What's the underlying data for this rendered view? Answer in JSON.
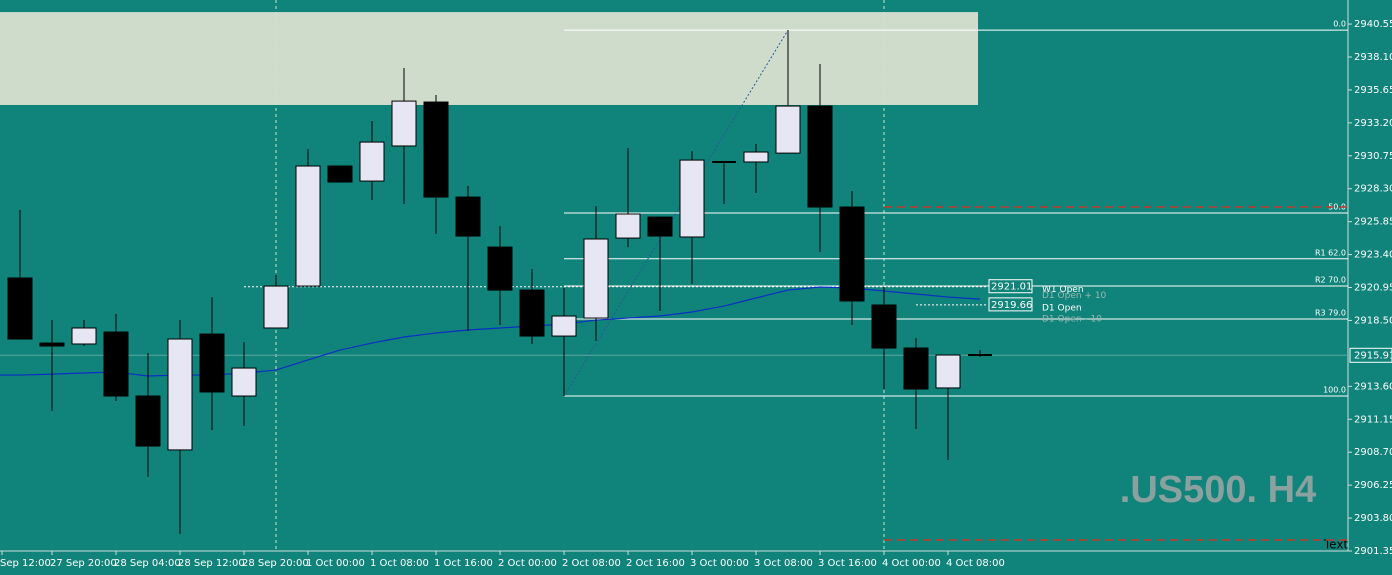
{
  "chart_data": {
    "type": "candlestick",
    "title": ".US500. H4",
    "corner_text": "Text",
    "open": [
      2921.66,
      2916.82,
      2916.75,
      2917.64,
      2912.88,
      2908.87,
      2917.49,
      2912.88,
      2917.94,
      2921.06,
      2929.99,
      2928.87,
      2931.48,
      2934.75,
      2927.68,
      2923.96,
      2920.76,
      2917.34,
      2918.68,
      2924.63,
      2926.19,
      2924.71,
      2930.29,
      2930.29,
      2930.95,
      2934.45,
      2926.94,
      2919.65,
      2916.45,
      2913.48,
      2915.93
    ],
    "high": [
      2926.72,
      2918.53,
      2918.53,
      2918.98,
      2916.08,
      2918.53,
      2920.24,
      2916.9,
      2921.88,
      2931.25,
      2929.99,
      2933.34,
      2937.28,
      2935.27,
      2928.5,
      2925.52,
      2922.33,
      2920.91,
      2927.01,
      2931.33,
      2926.19,
      2931.1,
      2930.29,
      2931.63,
      2940.1,
      2937.58,
      2928.13,
      2920.99,
      2917.19,
      2915.93,
      2916.3
    ],
    "low": [
      2917.12,
      2911.77,
      2916.6,
      2912.51,
      2906.86,
      2902.62,
      2910.35,
      2910.65,
      2917.94,
      2921.06,
      2928.8,
      2927.46,
      2927.16,
      2924.93,
      2917.72,
      2918.16,
      2916.75,
      2912.88,
      2916.97,
      2923.96,
      2919.2,
      2921.21,
      2927.16,
      2927.98,
      2930.95,
      2923.59,
      2918.16,
      2913.4,
      2910.43,
      2908.12,
      2915.78
    ],
    "close": [
      2917.12,
      2916.6,
      2917.94,
      2912.88,
      2909.16,
      2917.12,
      2913.18,
      2914.96,
      2921.06,
      2929.99,
      2928.8,
      2931.77,
      2934.82,
      2927.68,
      2924.78,
      2920.76,
      2917.34,
      2918.83,
      2924.56,
      2926.42,
      2924.78,
      2930.43,
      2930.29,
      2931.03,
      2934.45,
      2926.94,
      2919.95,
      2916.45,
      2913.4,
      2915.93,
      2915.93
    ],
    "bull_color": "#e6e6f5",
    "bear_color": "#000000",
    "moving_average": {
      "color": "#0a2fc4",
      "values": [
        2914.44,
        2914.51,
        2914.59,
        2914.66,
        2914.37,
        2914.44,
        2914.44,
        2914.59,
        2914.81,
        2915.56,
        2916.3,
        2916.82,
        2917.27,
        2917.57,
        2917.79,
        2917.94,
        2918.09,
        2918.23,
        2918.53,
        2918.68,
        2918.83,
        2919.13,
        2919.57,
        2920.17,
        2920.76,
        2920.99,
        2920.91,
        2920.69,
        2920.47,
        2920.24,
        2920.09
      ]
    },
    "time_labels": [
      "Sep 12:00",
      "27 Sep 20:00",
      "28 Sep 04:00",
      "28 Sep 12:00",
      "28 Sep 20:00",
      "1 Oct 00:00",
      "1 Oct 08:00",
      "1 Oct 16:00",
      "2 Oct 00:00",
      "2 Oct 08:00",
      "2 Oct 16:00",
      "3 Oct 00:00",
      "3 Oct 08:00",
      "3 Oct 16:00",
      "4 Oct 00:00",
      "4 Oct 08:00"
    ],
    "ylim": [
      2901.35,
      2942.34
    ],
    "yticks": [
      2940.55,
      {
        "value": 2938.1,
        "label": "2938.10"
      },
      2935.65,
      {
        "value": 2933.2,
        "label": "2933.20"
      },
      2930.75,
      {
        "value": 2928.3,
        "label": "2928.30"
      },
      2925.85,
      {
        "value": 2923.4,
        "label": "2923.40"
      },
      2920.95,
      {
        "value": 2918.5,
        "label": "2918.50"
      },
      {
        "value": 2913.6,
        "label": "2913.60"
      },
      2911.15,
      {
        "value": 2908.7,
        "label": "2908.70"
      },
      2906.25,
      {
        "value": 2903.8,
        "label": "2903.80"
      },
      2901.35
    ],
    "fib_levels": [
      {
        "label": "0.0",
        "value": 2940.1
      },
      {
        "label": "50.0",
        "value": 2926.49
      },
      {
        "label": "R1 62.0",
        "value": 2923.09
      },
      {
        "label": "R2 70.0",
        "value": 2921.06
      },
      {
        "label": "R3 79.0",
        "value": 2918.61
      },
      {
        "label": "100.0",
        "value": 2912.88
      }
    ],
    "open_levels": [
      {
        "value": 2921.01,
        "names": [
          "W1 Open",
          "D1 Open + 10"
        ]
      },
      {
        "value": 2919.66,
        "names": [
          "D1 Open",
          "D1 Open - 10"
        ]
      }
    ],
    "current_price": 2915.91,
    "red_levels": [
      2926.94,
      2902.17
    ],
    "zone": [
      2934.53,
      2941.44
    ]
  }
}
